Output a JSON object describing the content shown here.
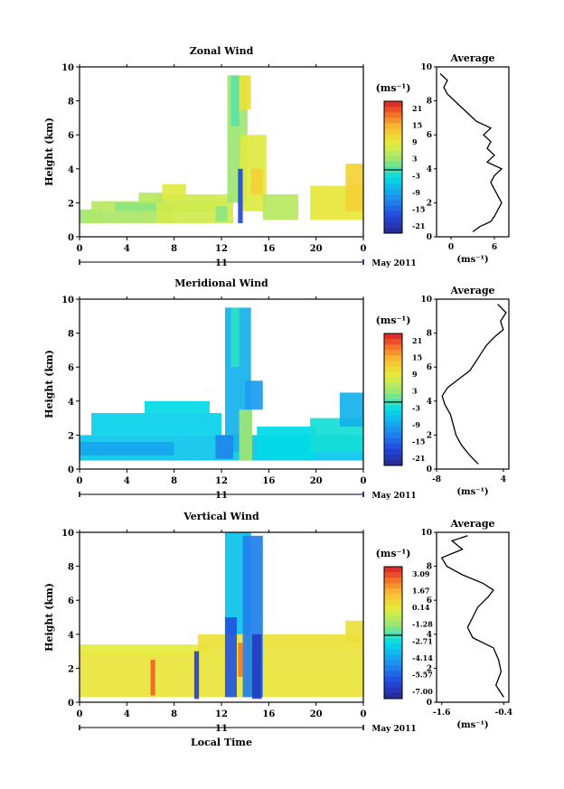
{
  "chart_data": [
    {
      "type": "heatmap",
      "title": "Zonal Wind",
      "ylabel": "Height (km)",
      "xlim": [
        0,
        24
      ],
      "ylim": [
        0,
        10
      ],
      "xticks": [
        "0",
        "4",
        "8",
        "12",
        "16",
        "20",
        "0"
      ],
      "yticks": [
        "0",
        "2",
        "4",
        "6",
        "8",
        "10"
      ],
      "day_label": "11",
      "month_label": "May 2011",
      "colorbar": {
        "unit": "(ms⁻¹)",
        "labels": [
          "21",
          "15",
          "9",
          "3",
          "-3",
          "-9",
          "-15",
          "-21"
        ],
        "min": -24,
        "max": 24
      },
      "regions": [
        {
          "x0": 0.0,
          "x1": 2.0,
          "y0": 0.8,
          "y1": 1.6,
          "v": 3
        },
        {
          "x0": 0.5,
          "x1": 8.0,
          "y0": 0.8,
          "y1": 1.5,
          "v": 4
        },
        {
          "x0": 1.0,
          "x1": 12.0,
          "y0": 1.5,
          "y1": 2.1,
          "v": 5
        },
        {
          "x0": 3.0,
          "x1": 8.0,
          "y0": 1.5,
          "y1": 2.0,
          "v": 2
        },
        {
          "x0": 6.5,
          "x1": 13.0,
          "y0": 0.8,
          "y1": 2.5,
          "v": 7
        },
        {
          "x0": 7.0,
          "x1": 9.0,
          "y0": 2.3,
          "y1": 3.1,
          "v": 8
        },
        {
          "x0": 12.5,
          "x1": 14.2,
          "y0": 2.0,
          "y1": 9.5,
          "v": 3
        },
        {
          "x0": 12.8,
          "x1": 13.5,
          "y0": 6.5,
          "y1": 9.5,
          "v": 0
        },
        {
          "x0": 13.5,
          "x1": 14.5,
          "y0": 7.5,
          "y1": 9.5,
          "v": 10
        },
        {
          "x0": 13.6,
          "x1": 15.8,
          "y0": 1.5,
          "y1": 6.0,
          "v": 8
        },
        {
          "x0": 14.5,
          "x1": 15.5,
          "y0": 2.5,
          "y1": 4.0,
          "v": 12
        },
        {
          "x0": 13.4,
          "x1": 13.8,
          "y0": 0.8,
          "y1": 4.0,
          "v": -18
        },
        {
          "x0": 15.5,
          "x1": 18.5,
          "y0": 1.0,
          "y1": 2.5,
          "v": 5
        },
        {
          "x0": 19.5,
          "x1": 24.0,
          "y0": 1.0,
          "y1": 3.0,
          "v": 9
        },
        {
          "x0": 22.5,
          "x1": 24.0,
          "y0": 1.5,
          "y1": 4.3,
          "v": 12
        },
        {
          "x0": 11.5,
          "x1": 12.5,
          "y0": 0.9,
          "y1": 1.8,
          "v": 2
        },
        {
          "x0": 5.0,
          "x1": 7.0,
          "y0": 2.0,
          "y1": 2.6,
          "v": 5
        }
      ],
      "profile": {
        "title": "Average",
        "xlabel": "(ms⁻¹)",
        "xticks": [
          "0",
          "6"
        ],
        "xlim": [
          -2,
          8
        ],
        "ylim": [
          0,
          10
        ],
        "yticks": [
          "0",
          "2",
          "4",
          "6",
          "8",
          "10"
        ],
        "points": [
          [
            3,
            0.3
          ],
          [
            4,
            0.6
          ],
          [
            5.5,
            0.9
          ],
          [
            6,
            1.2
          ],
          [
            6.5,
            1.6
          ],
          [
            7,
            2.0
          ],
          [
            6.5,
            2.4
          ],
          [
            6,
            2.8
          ],
          [
            5.5,
            3.2
          ],
          [
            6,
            3.6
          ],
          [
            7,
            4.0
          ],
          [
            5,
            4.4
          ],
          [
            6,
            4.8
          ],
          [
            5,
            5.2
          ],
          [
            5.5,
            5.6
          ],
          [
            4.5,
            6.0
          ],
          [
            5.5,
            6.4
          ],
          [
            3.5,
            6.8
          ],
          [
            2.5,
            7.2
          ],
          [
            1.5,
            7.6
          ],
          [
            0.5,
            8.0
          ],
          [
            -0.5,
            8.4
          ],
          [
            -1,
            8.8
          ],
          [
            -0.5,
            9.2
          ],
          [
            -1.5,
            9.6
          ]
        ]
      }
    },
    {
      "type": "heatmap",
      "title": "Meridional Wind",
      "ylabel": "Height (km)",
      "xlim": [
        0,
        24
      ],
      "ylim": [
        0,
        10
      ],
      "xticks": [
        "0",
        "4",
        "8",
        "12",
        "16",
        "20",
        "0"
      ],
      "yticks": [
        "0",
        "2",
        "4",
        "6",
        "8",
        "10"
      ],
      "day_label": "11",
      "month_label": "May 2011",
      "colorbar": {
        "unit": "(ms⁻¹)",
        "labels": [
          "21",
          "15",
          "9",
          "3",
          "-3",
          "-9",
          "-15",
          "-21"
        ],
        "min": -24,
        "max": 24
      },
      "regions": [
        {
          "x0": 0.0,
          "x1": 24.0,
          "y0": 0.5,
          "y1": 2.0,
          "v": -6
        },
        {
          "x0": 0.0,
          "x1": 8.0,
          "y0": 0.8,
          "y1": 1.6,
          "v": -9
        },
        {
          "x0": 1.0,
          "x1": 12.0,
          "y0": 2.0,
          "y1": 3.3,
          "v": -5
        },
        {
          "x0": 5.5,
          "x1": 11.0,
          "y0": 3.3,
          "y1": 4.0,
          "v": -4
        },
        {
          "x0": 12.3,
          "x1": 14.5,
          "y0": 1.0,
          "y1": 9.5,
          "v": -8
        },
        {
          "x0": 12.8,
          "x1": 13.5,
          "y0": 6.0,
          "y1": 9.5,
          "v": -2
        },
        {
          "x0": 13.5,
          "x1": 14.6,
          "y0": 0.5,
          "y1": 3.5,
          "v": 3
        },
        {
          "x0": 14.0,
          "x1": 15.5,
          "y0": 3.5,
          "y1": 5.2,
          "v": -10
        },
        {
          "x0": 15.0,
          "x1": 20.0,
          "y0": 0.6,
          "y1": 2.5,
          "v": -4
        },
        {
          "x0": 19.5,
          "x1": 24.0,
          "y0": 1.0,
          "y1": 3.0,
          "v": -3
        },
        {
          "x0": 22.0,
          "x1": 24.0,
          "y0": 2.5,
          "y1": 4.5,
          "v": -8
        },
        {
          "x0": 11.5,
          "x1": 13.0,
          "y0": 0.6,
          "y1": 2.0,
          "v": -12
        }
      ],
      "profile": {
        "title": "Average",
        "xlabel": "(ms⁻¹)",
        "xticks": [
          "-8",
          "4"
        ],
        "xlim": [
          -8,
          5
        ],
        "ylim": [
          0,
          10
        ],
        "yticks": [
          "0",
          "2",
          "4",
          "6",
          "8",
          "10"
        ],
        "points": [
          [
            -0.5,
            0.3
          ],
          [
            -2,
            0.8
          ],
          [
            -3.5,
            1.4
          ],
          [
            -4.5,
            2.0
          ],
          [
            -5,
            2.6
          ],
          [
            -5.5,
            3.2
          ],
          [
            -6.5,
            3.8
          ],
          [
            -7,
            4.3
          ],
          [
            -6,
            4.8
          ],
          [
            -4,
            5.3
          ],
          [
            -2,
            5.8
          ],
          [
            -1,
            6.3
          ],
          [
            0,
            6.8
          ],
          [
            1,
            7.3
          ],
          [
            2.5,
            7.8
          ],
          [
            4,
            8.2
          ],
          [
            3.5,
            8.7
          ],
          [
            4.5,
            9.2
          ],
          [
            3,
            9.7
          ]
        ]
      }
    },
    {
      "type": "heatmap",
      "title": "Vertical Wind",
      "xlabel": "Local Time",
      "ylabel": "Height (km)",
      "xlim": [
        0,
        24
      ],
      "ylim": [
        0,
        10
      ],
      "xticks": [
        "0",
        "4",
        "8",
        "12",
        "16",
        "20",
        "0"
      ],
      "yticks": [
        "0",
        "2",
        "4",
        "6",
        "8",
        "10"
      ],
      "day_label": "11",
      "month_label": "May 2011",
      "colorbar": {
        "unit": "(ms⁻¹)",
        "labels": [
          "3.09",
          "1.67",
          "0.14",
          "-1.28",
          "-2.71",
          "-4.14",
          "-5.57",
          "-7.00"
        ],
        "min": -7.7,
        "max": 3.8
      },
      "regions": [
        {
          "x0": 0.0,
          "x1": 24.0,
          "y0": 0.3,
          "y1": 3.0,
          "v": 0.3
        },
        {
          "x0": 0.0,
          "x1": 11.0,
          "y0": 2.8,
          "y1": 3.4,
          "v": 0.1
        },
        {
          "x0": 10.0,
          "x1": 24.0,
          "y0": 3.0,
          "y1": 4.0,
          "v": 0.4
        },
        {
          "x0": 22.5,
          "x1": 24.0,
          "y0": 3.5,
          "y1": 4.8,
          "v": 0.5
        },
        {
          "x0": 12.3,
          "x1": 14.5,
          "y0": 4.0,
          "y1": 10.0,
          "v": -3.5
        },
        {
          "x0": 13.8,
          "x1": 15.5,
          "y0": 0.3,
          "y1": 9.8,
          "v": -5.0
        },
        {
          "x0": 12.3,
          "x1": 13.3,
          "y0": 0.3,
          "y1": 5.0,
          "v": -6.0
        },
        {
          "x0": 6.0,
          "x1": 6.4,
          "y0": 0.4,
          "y1": 2.5,
          "v": 2.8
        },
        {
          "x0": 9.7,
          "x1": 10.1,
          "y0": 0.2,
          "y1": 3.0,
          "v": -6.5
        },
        {
          "x0": 14.6,
          "x1": 15.4,
          "y0": 0.2,
          "y1": 4.0,
          "v": -6.8
        },
        {
          "x0": 13.4,
          "x1": 13.8,
          "y0": 1.5,
          "y1": 3.5,
          "v": 2.5
        }
      ],
      "profile": {
        "title": "Average",
        "xlabel": "(ms⁻¹)",
        "xticks": [
          "-1.6",
          "-0.4"
        ],
        "xlim": [
          -1.7,
          -0.3
        ],
        "ylim": [
          0,
          10
        ],
        "yticks": [
          "0",
          "2",
          "4",
          "6",
          "8",
          "10"
        ],
        "points": [
          [
            -0.4,
            0.3
          ],
          [
            -0.55,
            1.0
          ],
          [
            -0.45,
            1.8
          ],
          [
            -0.5,
            2.5
          ],
          [
            -0.6,
            3.2
          ],
          [
            -1.0,
            3.8
          ],
          [
            -1.1,
            4.4
          ],
          [
            -1.0,
            5.0
          ],
          [
            -0.9,
            5.6
          ],
          [
            -0.7,
            6.2
          ],
          [
            -0.6,
            6.6
          ],
          [
            -0.8,
            7.0
          ],
          [
            -1.2,
            7.5
          ],
          [
            -1.5,
            8.0
          ],
          [
            -1.6,
            8.5
          ],
          [
            -1.2,
            9.0
          ],
          [
            -1.4,
            9.5
          ],
          [
            -1.1,
            9.8
          ]
        ]
      }
    }
  ]
}
